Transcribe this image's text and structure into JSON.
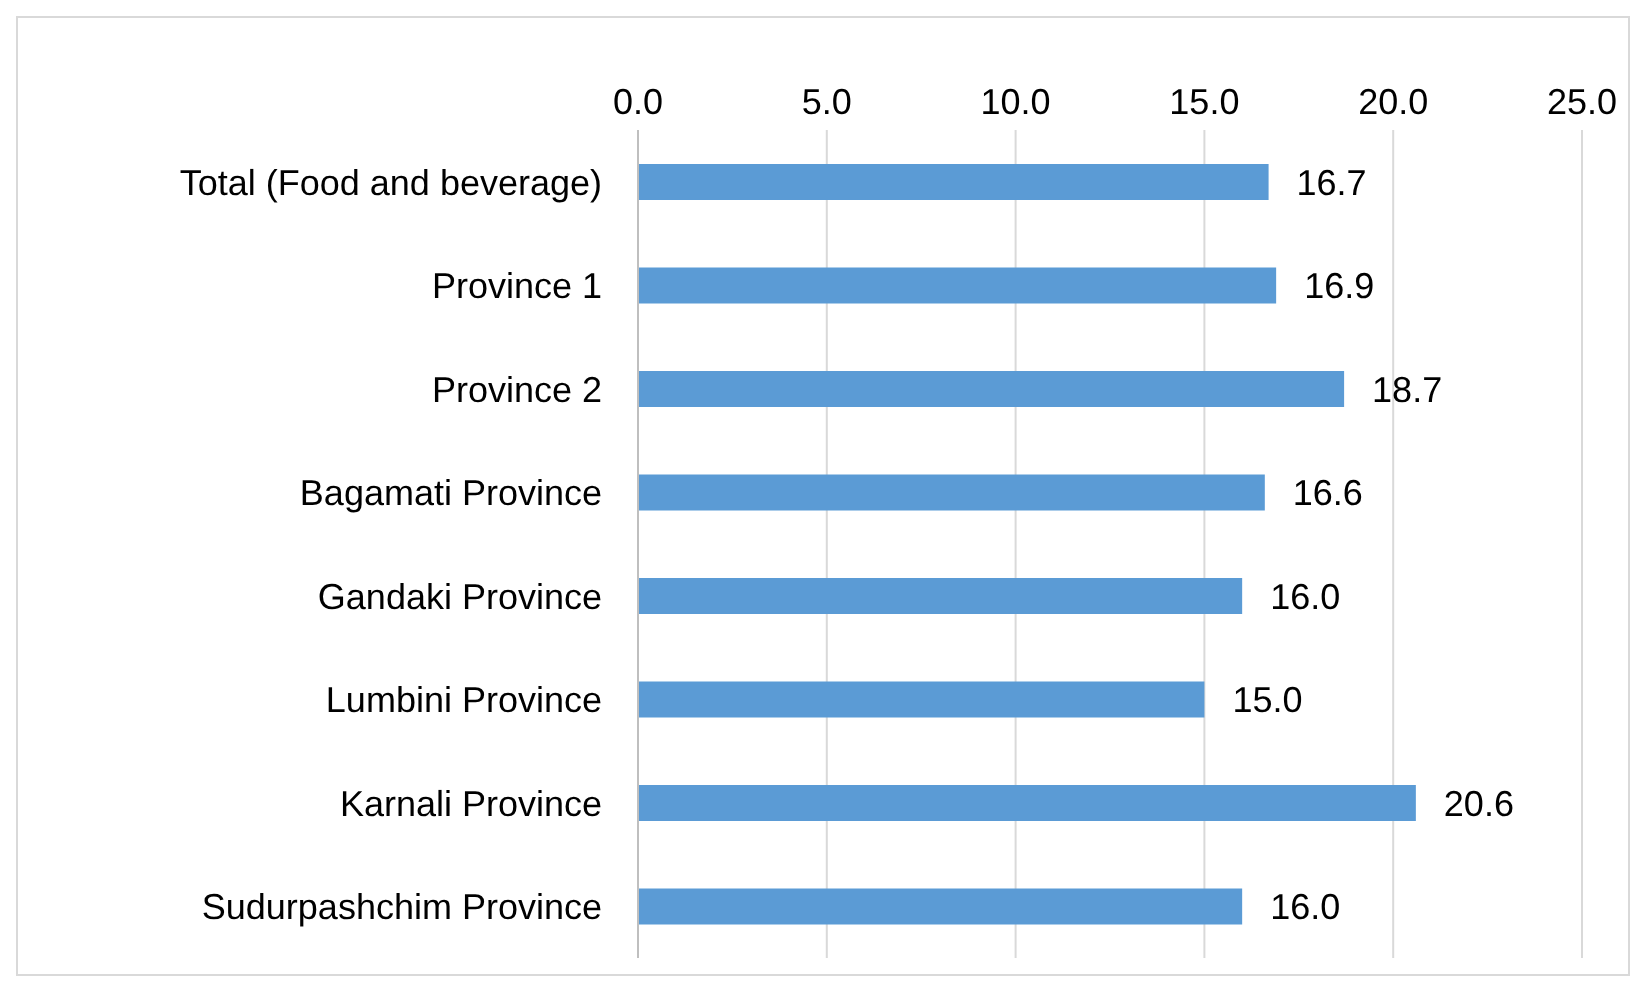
{
  "chart_data": {
    "type": "bar",
    "orientation": "horizontal",
    "categories": [
      "Total (Food and beverage)",
      "Province 1",
      "Province 2",
      "Bagamati Province",
      "Gandaki Province",
      "Lumbini Province",
      "Karnali Province",
      "Sudurpashchim Province"
    ],
    "values": [
      16.7,
      16.9,
      18.7,
      16.6,
      16.0,
      15.0,
      20.6,
      16.0
    ],
    "value_labels": [
      "16.7",
      "16.9",
      "18.7",
      "16.6",
      "16.0",
      "15.0",
      "20.6",
      "16.0"
    ],
    "color": "#5b9bd5",
    "xlim": [
      0,
      25
    ],
    "xticks": [
      {
        "value": 0,
        "label": "0.0"
      },
      {
        "value": 5,
        "label": "5.0"
      },
      {
        "value": 10,
        "label": "10.0"
      },
      {
        "value": 15,
        "label": "15.0"
      },
      {
        "value": 20,
        "label": "20.0"
      },
      {
        "value": 25,
        "label": "25.0"
      }
    ],
    "grid": "x",
    "legend": false
  }
}
